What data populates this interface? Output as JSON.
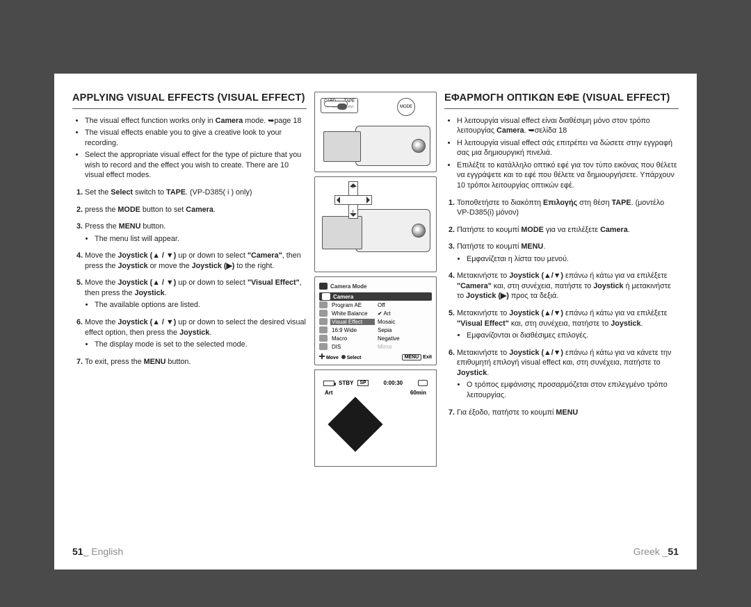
{
  "left": {
    "heading": "APPLYING VISUAL EFFECTS (VISUAL EFFECT)",
    "bullets": [
      "The visual effect function works only in <b>Camera</b> mode. ➥page 18",
      "The visual effects enable you to give a creative look to your recording.",
      "Select the appropriate visual effect for the type of picture that you wish to record and the effect you wish to create. There are 10 visual effect modes."
    ],
    "steps": [
      {
        "body": "Set the <b>Select</b> switch to <b>TAPE</b>. (VP-D385(&nbsp;i&nbsp;) only)"
      },
      {
        "body": "press the <b>MODE</b> button to set <b>Camera</b>."
      },
      {
        "body": "Press the <b>MENU</b> button.",
        "subs": [
          "The menu list will appear."
        ]
      },
      {
        "body": "Move the <b>Joystick (▲ / ▼)</b> up or down to select <b>\"Camera\"</b>, then press the <b>Joystick</b> or move the <b>Joystick (▶)</b> to the right."
      },
      {
        "body": "Move the <b>Joystick (▲ / ▼)</b> up or down to select <b>\"Visual Effect\"</b>, then press the <b>Joystick</b>.",
        "subs": [
          "The available options are listed."
        ]
      },
      {
        "body": "Move the <b>Joystick (▲ / ▼)</b> up or down to select the desired visual effect option, then press the <b>Joystick</b>.",
        "subs": [
          "The display mode is set to the selected mode."
        ]
      },
      {
        "body": "To exit, press the <b>MENU</b> button."
      }
    ]
  },
  "right": {
    "heading": "ΕΦΑΡΜΟΓΗ ΟΠΤΙΚΩΝ ΕΦΕ (VISUAL EFFECT)",
    "bullets": [
      "Η λειτουργία  visual effect είναι διαθέσιμη μόνο στον τρόπο λειτουργίας <b>Camera</b>. ➥σελίδα 18",
      "Η λειτουργία visual effect σάς επιτρέπει να δώσετε στην εγγραφή σας μια δημιουργική πινελιά.",
      "Επιλέξτε το κατάλληλο οπτικό εφέ για τον τύπο εικόνας που θέλετε να εγγράψετε και το εφέ που θέλετε να δημιουργήσετε. Υπάρχουν 10 τρόποι λειτουργίας οπτικών εφέ."
    ],
    "steps": [
      {
        "body": "Τοποθετήστε το διακόπτη <b>Επιλογής</b> στη θέση <b>TAPE</b>. (μοντέλο VP-D385(i) μόνον)"
      },
      {
        "body": "Πατήστε το κουμπί <b>MODE</b> για να επιλέξετε <b>Camera</b>."
      },
      {
        "body": "Πατήστε το κουμπί <b>MENU</b>.",
        "subs": [
          "Εμφανίζεται η λίστα του μενού."
        ]
      },
      {
        "body": "Μετακινήστε το <b>Joystick (▲/▼)</b> επάνω ή κάτω για να επιλέξετε <b>\"Camera\"</b> και, στη συνέχεια, πατήστε το <b>Joystick</b> ή μετακινήστε το <b>Joystick (▶)</b> προς τα δεξιά."
      },
      {
        "body": "Μετακινήστε το <b>Joystick (▲/▼)</b> επάνω ή κάτω για να επιλέξετε <b>\"Visual Effect\"</b> και, στη συνέχεια, πατήστε το <b>Joystick</b>.",
        "subs": [
          "Εμφανίζονται οι διαθέσιμες επιλογές."
        ]
      },
      {
        "body": "Μετακινήστε το <b>Joystick (▲/▼)</b> επάνω ή κάτω για να κάνετε την επιθυμητή επιλογή visual effect και, στη συνέχεια, πατήστε το <b>Joystick</b>.",
        "subs": [
          "Ο τρόπος εμφάνισης προσαρμόζεται στον επιλεγμένο τρόπο λειτουργίας."
        ]
      },
      {
        "body": "Για έξοδο, πατήστε το κουμπί <b>MENU</b>"
      }
    ]
  },
  "mid": {
    "pill": {
      "left": "CARD",
      "right": "TAPE",
      "note": "(VP-D385(&nbsp;i&nbsp;) only)"
    },
    "mode": "MODE",
    "joy_w": "W",
    "joy_t": "T",
    "osd": {
      "header": "Camera Mode",
      "category": "Camera",
      "rows": [
        {
          "m": "Program AE",
          "v": "Off"
        },
        {
          "m": "White Balance",
          "v": "✔ Art"
        },
        {
          "m": "Visual Effect",
          "v": "Mosaic",
          "sel": true
        },
        {
          "m": "16:9 Wide",
          "v": "Sepia"
        },
        {
          "m": "Macro",
          "v": "Negative"
        },
        {
          "m": "DIS",
          "v": "Mirror",
          "dim": true
        }
      ],
      "move": "Move",
      "select": "Select",
      "menu": "MENU",
      "exit": "Exit"
    },
    "rec": {
      "stby": "STBY",
      "sp": "SP",
      "time": "0:00:30",
      "remain": "60min",
      "mode_label": "Art"
    }
  },
  "footer": {
    "left_num": "51",
    "left_lang": "English",
    "right_lang": "Greek",
    "right_num": "51"
  }
}
